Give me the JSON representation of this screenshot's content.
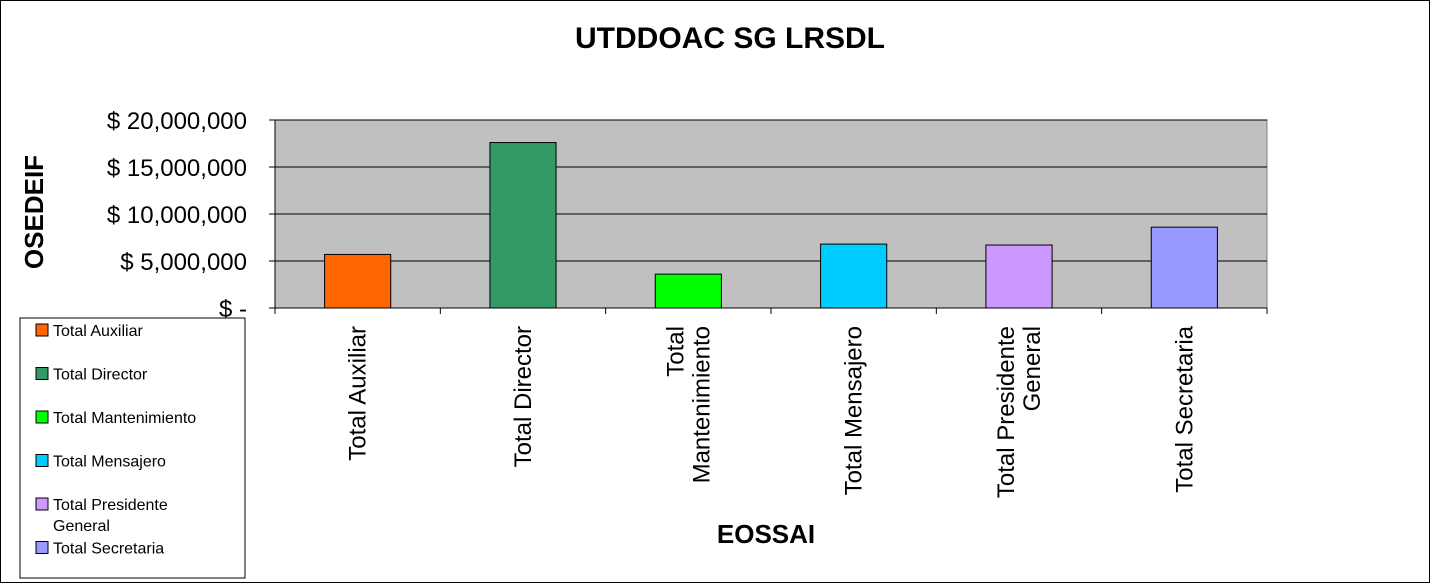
{
  "chart_data": {
    "type": "bar",
    "title": "UTDDOAC SG LRSDL",
    "xlabel": "EOSSAI",
    "ylabel": "OSEDEIF",
    "categories": [
      "Total Auxiliar",
      "Total Director",
      "Total Mantenimiento",
      "Total Mensajero",
      "Total Presidente General",
      "Total Secretaria"
    ],
    "category_lines": [
      [
        "Total Auxiliar"
      ],
      [
        "Total Director"
      ],
      [
        "Total",
        "Mantenimiento"
      ],
      [
        "Total Mensajero"
      ],
      [
        "Total Presidente",
        "General"
      ],
      [
        "Total Secretaria"
      ]
    ],
    "values": [
      5700000,
      17600000,
      3600000,
      6800000,
      6700000,
      8600000
    ],
    "colors": [
      "#ff6600",
      "#339966",
      "#00ff00",
      "#00ccff",
      "#cc99ff",
      "#9999ff"
    ],
    "ylim": [
      0,
      20000000
    ],
    "yticks": [
      0,
      5000000,
      10000000,
      15000000,
      20000000
    ],
    "ytick_labels": [
      "$ -",
      "$ 5,000,000",
      "$ 10,000,000",
      "$ 15,000,000",
      "$ 20,000,000"
    ],
    "grid": true,
    "plot_background": "#c0c0c0",
    "legend": {
      "position": "bottom-left",
      "entries": [
        [
          "Total Auxiliar"
        ],
        [
          "Total Director"
        ],
        [
          "Total Mantenimiento"
        ],
        [
          "Total Mensajero"
        ],
        [
          "Total Presidente",
          "General"
        ],
        [
          "Total Secretaria"
        ]
      ]
    }
  }
}
